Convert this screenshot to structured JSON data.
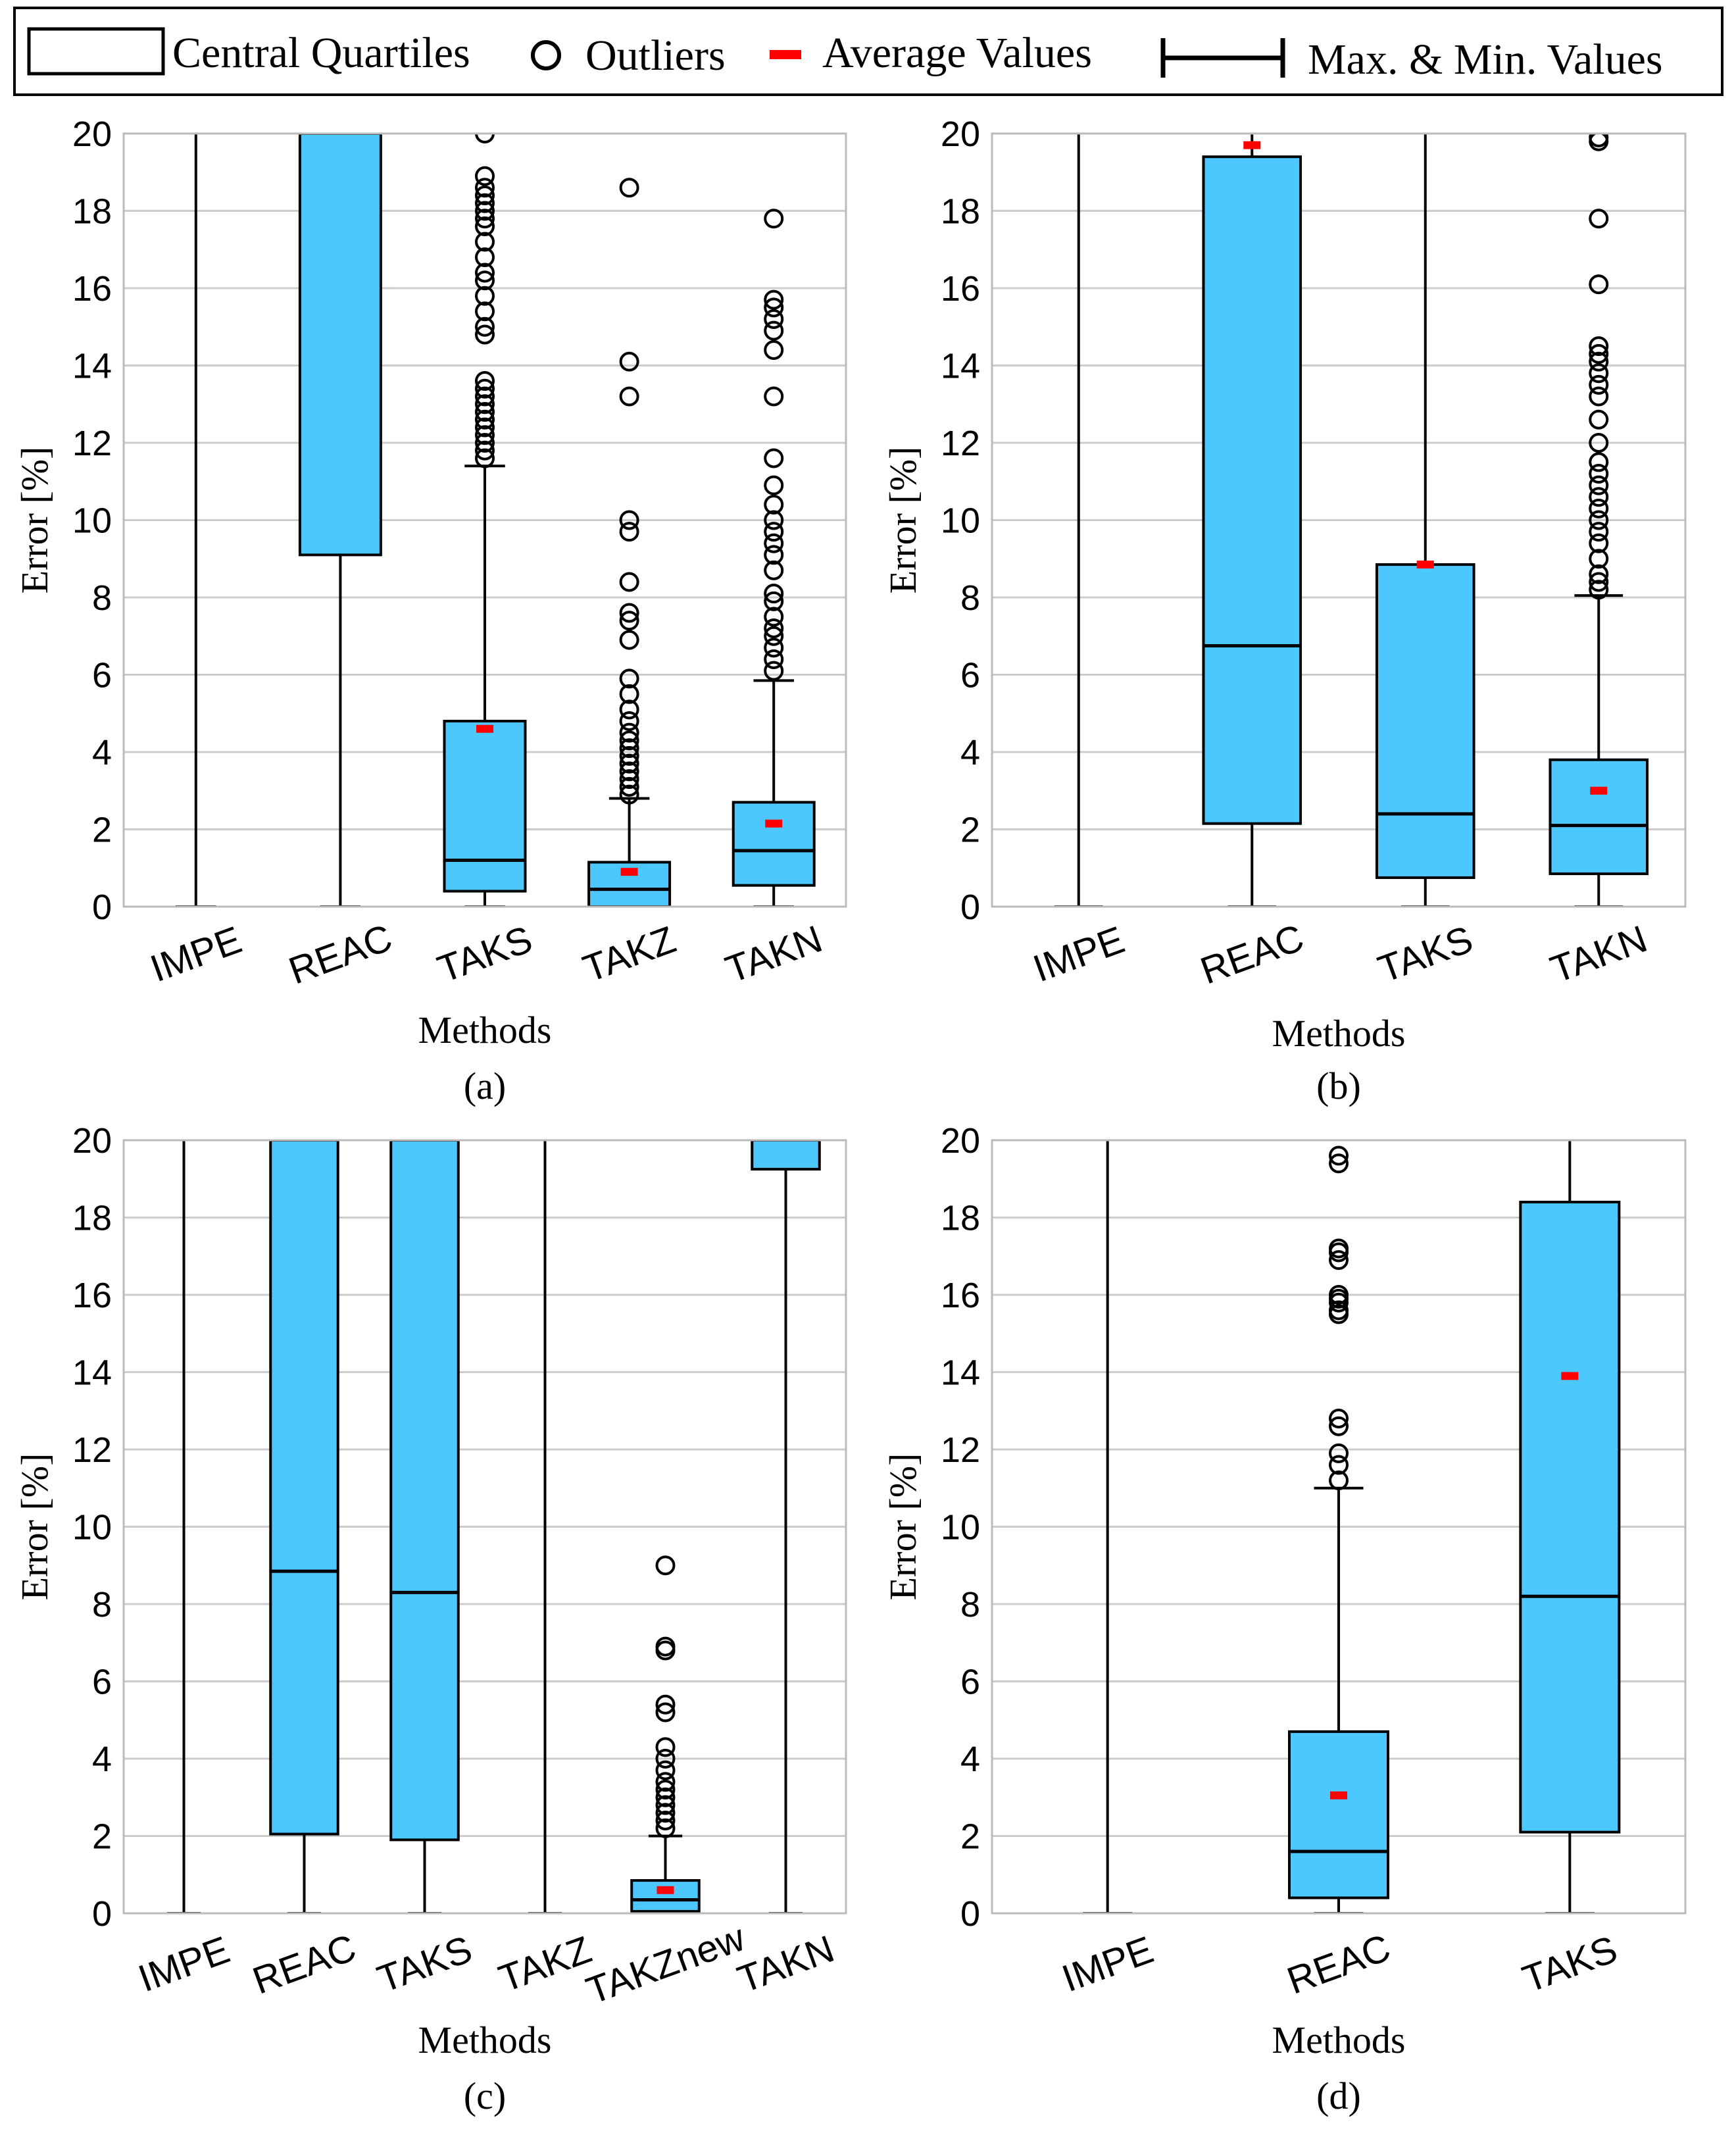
{
  "legend": {
    "box_label": "Central Quartiles",
    "outlier_label": "Outliers",
    "mean_label": "Average Values",
    "whisker_label": "Max. & Min. Values"
  },
  "colors": {
    "box_fill": "#4DC8FF",
    "mean": "#FF0000",
    "grid": "#CCCCCC",
    "line": "#000000"
  },
  "chart_data": [
    {
      "type": "box",
      "panel_label": "(a)",
      "xlabel": "Methods",
      "ylabel": "Error [%]",
      "ylim": [
        0,
        20
      ],
      "yticks": [
        0,
        2,
        4,
        6,
        8,
        10,
        12,
        14,
        16,
        18,
        20
      ],
      "grid": true,
      "categories": [
        "IMPE",
        "REAC",
        "TAKS",
        "TAKZ",
        "TAKN"
      ],
      "boxes": [
        {
          "min": 0,
          "q1": null,
          "median": null,
          "q3": null,
          "max": 20.5,
          "mean": null,
          "outliers": []
        },
        {
          "min": 0,
          "q1": 9.1,
          "median": null,
          "q3": 20.5,
          "max": 20.5,
          "mean": null,
          "outliers": []
        },
        {
          "min": 0,
          "q1": 0.4,
          "median": 1.2,
          "q3": 4.8,
          "max": 11.4,
          "mean": 4.6,
          "outliers": [
            11.6,
            11.8,
            12.0,
            12.2,
            12.4,
            12.6,
            12.8,
            13.0,
            13.2,
            13.4,
            13.6,
            14.8,
            15.0,
            15.4,
            15.8,
            16.2,
            16.4,
            16.8,
            17.2,
            17.6,
            17.8,
            18.0,
            18.2,
            18.4,
            18.6,
            18.9,
            20.0
          ]
        },
        {
          "min": 0,
          "q1": 0,
          "median": 0.45,
          "q3": 1.15,
          "max": 2.8,
          "mean": 0.9,
          "outliers": [
            2.9,
            3.1,
            3.3,
            3.5,
            3.7,
            3.9,
            4.1,
            4.3,
            4.5,
            4.8,
            5.1,
            5.5,
            5.9,
            6.9,
            7.4,
            7.6,
            8.4,
            9.7,
            10.0,
            13.2,
            14.1,
            18.6
          ]
        },
        {
          "min": 0,
          "q1": 0.55,
          "median": 1.45,
          "q3": 2.7,
          "max": 5.85,
          "mean": 2.15,
          "outliers": [
            6.1,
            6.4,
            6.7,
            7.0,
            7.2,
            7.5,
            7.9,
            8.1,
            8.7,
            9.1,
            9.4,
            9.7,
            10.0,
            10.4,
            10.9,
            11.6,
            13.2,
            14.4,
            14.9,
            15.2,
            15.5,
            15.7,
            17.8
          ]
        }
      ]
    },
    {
      "type": "box",
      "panel_label": "(b)",
      "xlabel": "Methods",
      "ylabel": "Error [%]",
      "ylim": [
        0,
        20
      ],
      "yticks": [
        0,
        2,
        4,
        6,
        8,
        10,
        12,
        14,
        16,
        18,
        20
      ],
      "grid": true,
      "categories": [
        "IMPE",
        "REAC",
        "TAKS",
        "TAKN"
      ],
      "boxes": [
        {
          "min": 0,
          "q1": null,
          "median": null,
          "q3": null,
          "max": 20.5,
          "mean": null,
          "outliers": []
        },
        {
          "min": 0,
          "q1": 2.15,
          "median": 6.75,
          "q3": 19.4,
          "max": 20.5,
          "mean": 19.7,
          "outliers": []
        },
        {
          "min": 0,
          "q1": 0.75,
          "median": 2.4,
          "q3": 8.85,
          "max": 20.5,
          "mean": 8.85,
          "outliers": []
        },
        {
          "min": 0,
          "q1": 0.85,
          "median": 2.1,
          "q3": 3.8,
          "max": 8.05,
          "mean": 3.0,
          "outliers": [
            8.2,
            8.4,
            8.6,
            9.0,
            9.4,
            9.7,
            10.0,
            10.3,
            10.6,
            10.9,
            11.2,
            11.5,
            12.0,
            12.6,
            13.2,
            13.5,
            13.8,
            14.1,
            14.3,
            14.5,
            16.1,
            17.8,
            19.8,
            19.9
          ]
        }
      ]
    },
    {
      "type": "box",
      "panel_label": "(c)",
      "xlabel": "Methods",
      "ylabel": "Error [%]",
      "ylim": [
        0,
        20
      ],
      "yticks": [
        0,
        2,
        4,
        6,
        8,
        10,
        12,
        14,
        16,
        18,
        20
      ],
      "grid": true,
      "categories": [
        "IMPE",
        "REAC",
        "TAKS",
        "TAKZ",
        "TAKZnew",
        "TAKN"
      ],
      "boxes": [
        {
          "min": 0,
          "q1": null,
          "median": null,
          "q3": null,
          "max": 20.5,
          "mean": null,
          "outliers": []
        },
        {
          "min": 0,
          "q1": 2.05,
          "median": 8.85,
          "q3": 20.5,
          "max": 20.5,
          "mean": null,
          "outliers": []
        },
        {
          "min": 0,
          "q1": 1.9,
          "median": 8.3,
          "q3": 20.5,
          "max": 20.5,
          "mean": null,
          "outliers": []
        },
        {
          "min": 0,
          "q1": null,
          "median": null,
          "q3": null,
          "max": 20.5,
          "mean": null,
          "outliers": []
        },
        {
          "min": 0,
          "q1": 0.05,
          "median": 0.35,
          "q3": 0.85,
          "max": 2.0,
          "mean": 0.6,
          "outliers": [
            2.2,
            2.4,
            2.6,
            2.8,
            3.0,
            3.2,
            3.4,
            3.7,
            4.0,
            4.3,
            5.2,
            5.4,
            6.8,
            6.9,
            9.0
          ]
        },
        {
          "min": 0,
          "q1": 19.25,
          "median": null,
          "q3": 20.5,
          "max": 20.5,
          "mean": null,
          "outliers": []
        }
      ]
    },
    {
      "type": "box",
      "panel_label": "(d)",
      "xlabel": "Methods",
      "ylabel": "Error [%]",
      "ylim": [
        0,
        20
      ],
      "yticks": [
        0,
        2,
        4,
        6,
        8,
        10,
        12,
        14,
        16,
        18,
        20
      ],
      "grid": true,
      "categories": [
        "IMPE",
        "REAC",
        "TAKS"
      ],
      "boxes": [
        {
          "min": 0,
          "q1": null,
          "median": null,
          "q3": null,
          "max": 20.5,
          "mean": null,
          "outliers": []
        },
        {
          "min": 0,
          "q1": 0.4,
          "median": 1.6,
          "q3": 4.7,
          "max": 11.0,
          "mean": 3.05,
          "outliers": [
            11.2,
            11.6,
            11.9,
            12.6,
            12.8,
            15.5,
            15.6,
            15.8,
            15.9,
            16.0,
            16.9,
            17.1,
            17.2,
            19.4,
            19.6
          ]
        },
        {
          "min": 0,
          "q1": 2.1,
          "median": 8.2,
          "q3": 18.4,
          "max": 20.5,
          "mean": 13.9,
          "outliers": []
        }
      ]
    }
  ]
}
